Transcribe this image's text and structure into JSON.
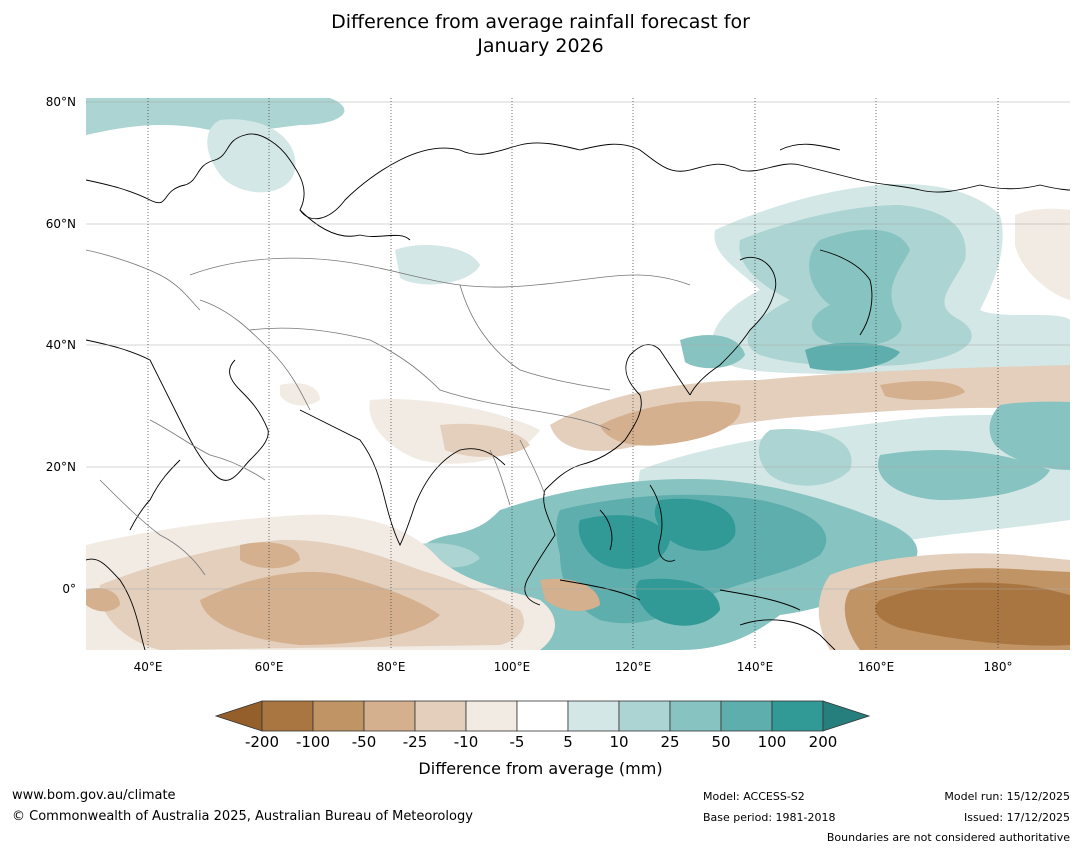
{
  "title": {
    "line1": "Difference from average rainfall forecast for",
    "line2": "January 2026"
  },
  "map": {
    "lat_labels": [
      "80°N",
      "60°N",
      "40°N",
      "20°N",
      "0°"
    ],
    "lon_labels": [
      "40°E",
      "60°E",
      "80°E",
      "100°E",
      "120°E",
      "140°E",
      "160°E",
      "180°"
    ],
    "region": {
      "lon_range": [
        30,
        192
      ],
      "lat_range": [
        -10,
        81
      ]
    }
  },
  "colorbar": {
    "ticks": [
      "-200",
      "-100",
      "-50",
      "-25",
      "-10",
      "-5",
      "5",
      "10",
      "25",
      "50",
      "100",
      "200"
    ],
    "colors": [
      "#a97540",
      "#c19466",
      "#d4b08e",
      "#e3cfbc",
      "#f1ebe4",
      "#ffffff",
      "#d3e7e6",
      "#abd4d3",
      "#87c3c1",
      "#5daeac",
      "#319996"
    ],
    "under_color": "#955f2c",
    "over_color": "#267f7c",
    "label": "Difference from average (mm)"
  },
  "footer": {
    "website": "www.bom.gov.au/climate",
    "copyright": "© Commonwealth of Australia 2025, Australian Bureau of Meteorology",
    "model": "Model: ACCESS-S2",
    "base_period": "Base period: 1981-2018",
    "model_run": "Model run: 15/12/2025",
    "issued": "Issued: 17/12/2025",
    "disclaimer": "Boundaries are not considered authoritative"
  }
}
